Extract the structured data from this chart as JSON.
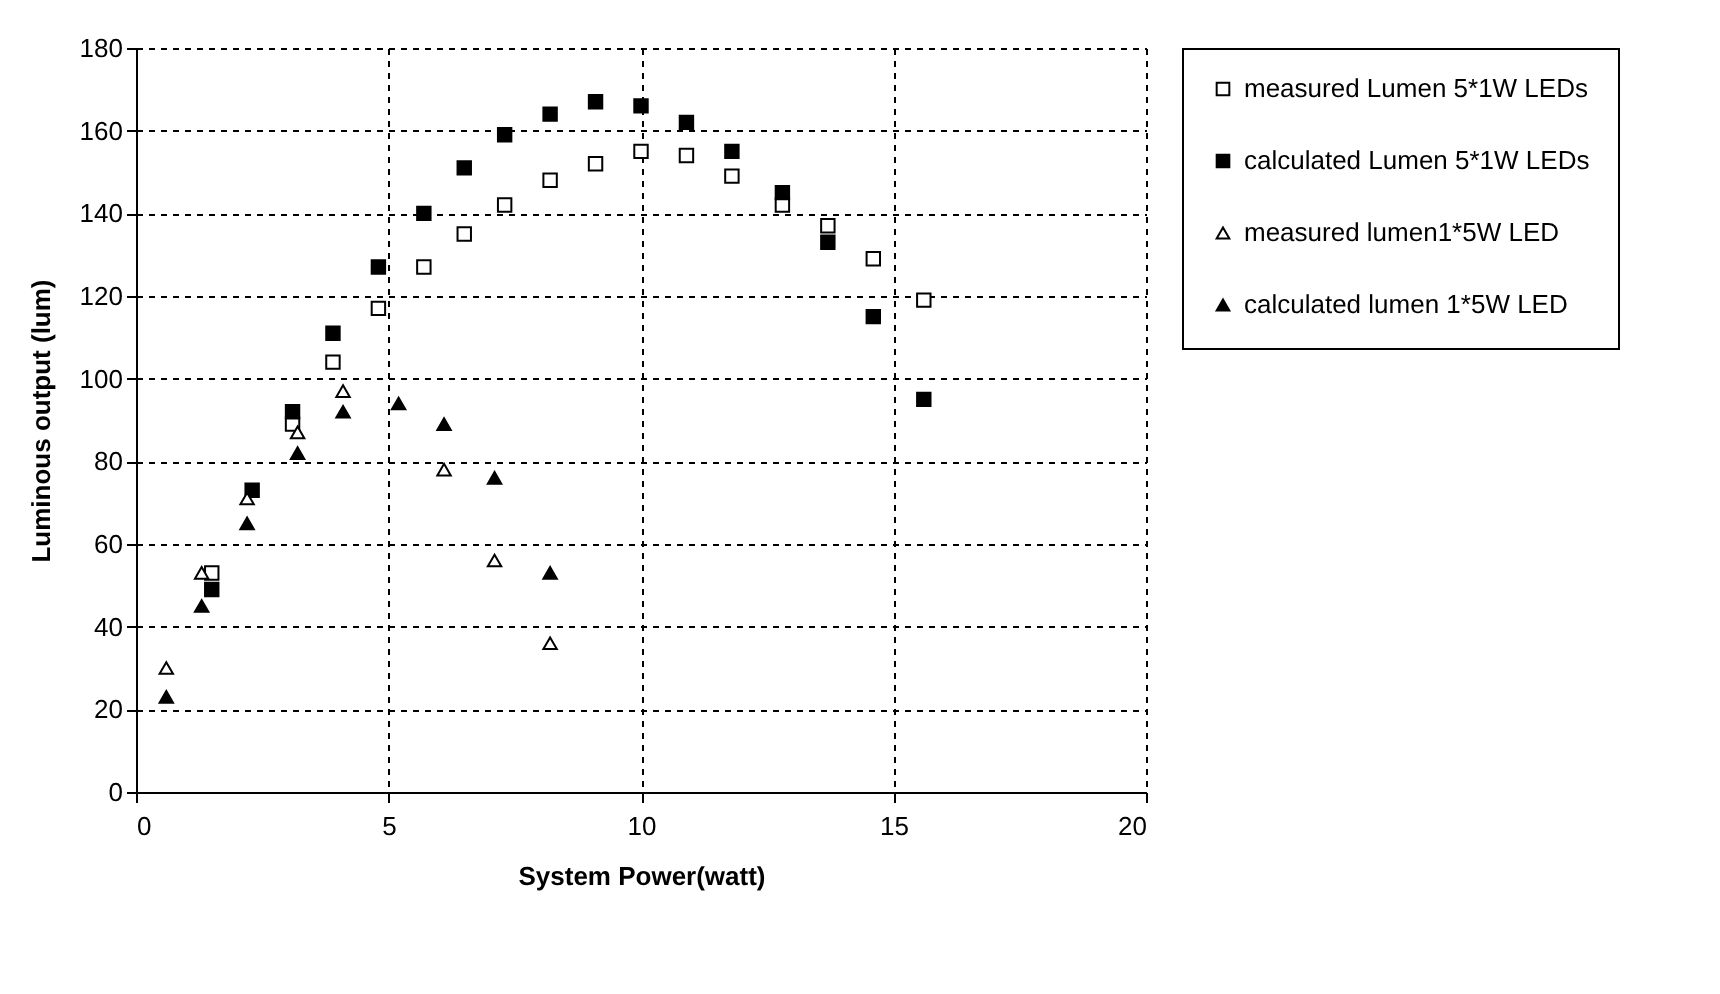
{
  "chart_data": {
    "type": "scatter",
    "xlabel": "System Power(watt)",
    "ylabel": "Luminous output (lum)",
    "xlim": [
      0,
      20
    ],
    "ylim": [
      0,
      180
    ],
    "xticks": [
      0,
      5,
      10,
      15,
      20
    ],
    "yticks": [
      0,
      20,
      40,
      60,
      80,
      100,
      120,
      140,
      160,
      180
    ],
    "grid": true,
    "legend": "right",
    "series": [
      {
        "name": "measured Lumen 5*1W LEDs",
        "color": "#ffffff",
        "marker": "square",
        "x": [
          1.5,
          3.1,
          3.9,
          4.8,
          5.7,
          6.5,
          7.3,
          8.2,
          9.1,
          10,
          10.9,
          11.8,
          12.8,
          13.7,
          14.6,
          15.6
        ],
        "values": [
          53,
          89,
          104,
          117,
          127,
          135,
          142,
          148,
          152,
          155,
          154,
          149,
          142,
          137,
          129,
          119
        ]
      },
      {
        "name": "calculated Lumen 5*1W LEDs",
        "color": "#000000",
        "marker": "square",
        "x": [
          1.5,
          2.3,
          3.1,
          3.9,
          4.8,
          5.7,
          6.5,
          7.3,
          8.2,
          9.1,
          10,
          10.9,
          11.8,
          12.8,
          13.7,
          14.6,
          15.6
        ],
        "values": [
          49,
          73,
          92,
          111,
          127,
          140,
          151,
          159,
          164,
          167,
          166,
          162,
          155,
          145,
          133,
          115,
          95
        ]
      },
      {
        "name": "measured lumen1*5W LED",
        "color": "#ffffff",
        "marker": "triangle",
        "x": [
          0.6,
          1.3,
          2.2,
          3.2,
          4.1,
          6.1,
          7.1,
          8.2
        ],
        "values": [
          30,
          53,
          71,
          87,
          97,
          78,
          56,
          36
        ]
      },
      {
        "name": "calculated lumen 1*5W LED",
        "color": "#000000",
        "marker": "triangle",
        "x": [
          0.6,
          1.3,
          2.2,
          3.2,
          4.1,
          5.2,
          6.1,
          7.1,
          8.2
        ],
        "values": [
          23,
          45,
          65,
          82,
          92,
          94,
          89,
          76,
          53
        ]
      }
    ]
  }
}
